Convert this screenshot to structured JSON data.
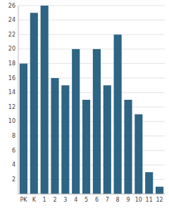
{
  "chart_data": {
    "type": "bar",
    "categories": [
      "PK",
      "K",
      "1",
      "2",
      "3",
      "4",
      "5",
      "6",
      "7",
      "8",
      "9",
      "10",
      "11",
      "12"
    ],
    "values": [
      18,
      25,
      26,
      16,
      15,
      20,
      13,
      20,
      15,
      22,
      13,
      11,
      3,
      1
    ],
    "color": "#2e6484",
    "ylim": [
      0,
      26
    ],
    "yticks": [
      2,
      4,
      6,
      8,
      10,
      12,
      14,
      16,
      18,
      20,
      22,
      24,
      26
    ],
    "grid": true
  }
}
